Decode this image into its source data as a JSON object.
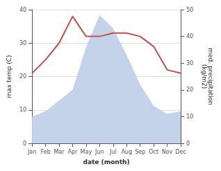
{
  "chart_data": {
    "type": "line",
    "xlabel": "date (month)",
    "ylabel": "max temp (C)",
    "y2label": "med. precipitation\n(kg/m2)",
    "categories": [
      "Jan",
      "Feb",
      "Mar",
      "Apr",
      "May",
      "Jun",
      "Jul",
      "Aug",
      "Sep",
      "Oct",
      "Nov",
      "Dec"
    ],
    "series": [
      {
        "type": "area",
        "axis": "y2",
        "color": "#c5d3ea",
        "values": [
          10,
          12,
          16,
          20,
          36,
          48,
          43,
          33,
          22,
          14,
          11,
          12
        ]
      },
      {
        "type": "line",
        "color": "#c0504d",
        "values": [
          21,
          25,
          30,
          38,
          32,
          32,
          33,
          33,
          32,
          29,
          22,
          21
        ]
      }
    ],
    "ylim": [
      0,
      40
    ],
    "yticks": [
      0,
      10,
      20,
      30,
      40
    ],
    "y2lim": [
      0,
      50
    ],
    "y2ticks": [
      0,
      10,
      20,
      30,
      40,
      50
    ],
    "grid": true
  }
}
